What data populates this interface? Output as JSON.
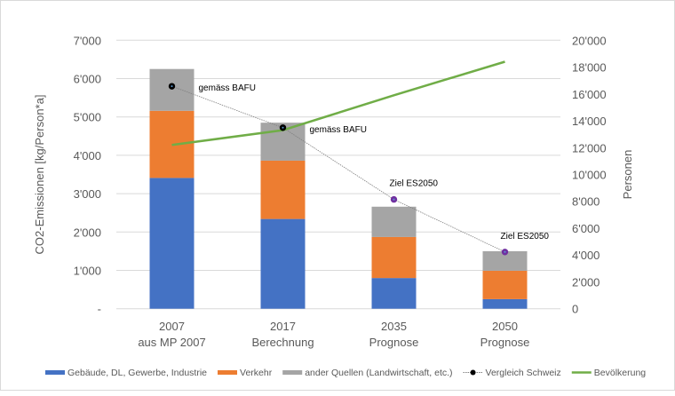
{
  "chart_data": {
    "type": "bar",
    "stacked": true,
    "categories": [
      "2007\naus MP 2007",
      "2017\nBerechnung",
      "2035\nPrognose",
      "2050\nPrognose"
    ],
    "ylabel": "CO2-Emissionen [kg/Person*a]",
    "y2label": "Personen",
    "ylim": [
      0,
      7000
    ],
    "y2lim": [
      0,
      20000
    ],
    "yticks": [
      "-",
      "1'000",
      "2'000",
      "3'000",
      "4'000",
      "5'000",
      "6'000",
      "7'000"
    ],
    "y2ticks": [
      "0",
      "2'000",
      "4'000",
      "6'000",
      "8'000",
      "10'000",
      "12'000",
      "14'000",
      "16'000",
      "18'000",
      "20'000"
    ],
    "grid": true,
    "legend_position": "bottom",
    "series": [
      {
        "name": "Gebäude, DL, Gewerbe, Industrie",
        "type": "bar",
        "color": "#4472c4",
        "values": [
          3410,
          2340,
          800,
          250
        ]
      },
      {
        "name": "Verkehr",
        "type": "bar",
        "color": "#ed7d31",
        "values": [
          1750,
          1520,
          1070,
          740
        ]
      },
      {
        "name": "ander Quellen (Landwirtschaft, etc.)",
        "type": "bar",
        "color": "#a5a5a5",
        "values": [
          1090,
          990,
          790,
          510
        ]
      },
      {
        "name": "Vergleich Schweiz",
        "type": "line-marker",
        "color": "#000000",
        "values": [
          5800,
          4720,
          2850,
          1480
        ],
        "labels": [
          "gemäss BAFU",
          "gemäss BAFU",
          "Ziel ES2050",
          "Ziel ES2050"
        ],
        "marker_colors": [
          "#000000",
          "#000000",
          "#7030a0",
          "#7030a0"
        ]
      },
      {
        "name": "Bevölkerung",
        "type": "line",
        "axis": "right",
        "color": "#70ad47",
        "values": [
          12200,
          13300,
          15900,
          18400
        ]
      }
    ]
  }
}
